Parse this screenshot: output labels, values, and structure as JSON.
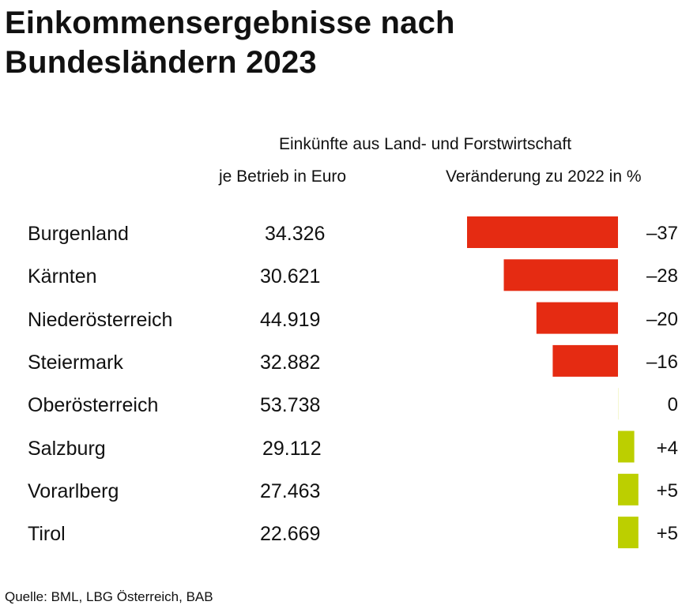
{
  "title_line1": "Einkommensergebnisse nach",
  "title_line2": "Bundesländern 2023",
  "header_group": "Einkünfte aus Land- und Forstwirtschaft",
  "header_value": "je Betrieb in Euro",
  "header_change": "Veränderung zu 2022 in %",
  "source": "Quelle: BML, LBG Österreich, BAB",
  "colors": {
    "negative": "#e52b12",
    "positive": "#bccf00",
    "zero": "#f4f7d0"
  },
  "chart_data": {
    "type": "bar",
    "orientation": "horizontal",
    "categories": [
      "Burgenland",
      "Kärnten",
      "Niederösterreich",
      "Steiermark",
      "Oberösterreich",
      "Salzburg",
      "Vorarlberg",
      "Tirol"
    ],
    "series": [
      {
        "name": "je Betrieb in Euro",
        "values": [
          34326,
          30621,
          44919,
          32882,
          53738,
          29112,
          27463,
          22669
        ],
        "labels": [
          "34.326",
          "30.621",
          "44.919",
          "32.882",
          "53.738",
          "29.112",
          "27.463",
          "22.669"
        ]
      },
      {
        "name": "Veränderung zu 2022 in %",
        "values": [
          -37,
          -28,
          -20,
          -16,
          0,
          4,
          5,
          5
        ],
        "labels": [
          "–37",
          "–28",
          "–20",
          "–16",
          "0",
          "+4",
          "+5",
          "+5"
        ]
      }
    ],
    "xlim": [
      -37,
      5
    ]
  }
}
